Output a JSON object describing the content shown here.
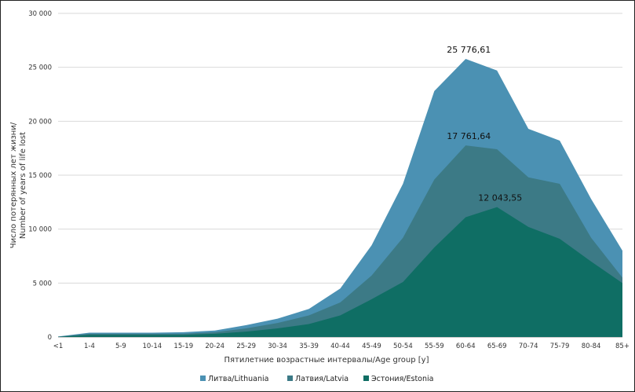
{
  "chart_data": {
    "type": "area",
    "categories": [
      "<1",
      "1-4",
      "5-9",
      "10-14",
      "15-19",
      "20-24",
      "25-29",
      "30-34",
      "35-39",
      "40-44",
      "45-49",
      "50-54",
      "55-59",
      "60-64",
      "65-69",
      "70-74",
      "75-79",
      "80-84",
      "85+"
    ],
    "series": [
      {
        "name": "Литва/Lithuania",
        "color": "#4b91b3",
        "values": [
          50,
          400,
          400,
          400,
          450,
          600,
          1100,
          1700,
          2600,
          4500,
          8500,
          14200,
          22800,
          25776.61,
          24700,
          19300,
          18200,
          12800,
          8000
        ]
      },
      {
        "name": "Латвия/Latvia",
        "color": "#3c7a86",
        "values": [
          30,
          300,
          300,
          300,
          300,
          450,
          800,
          1300,
          2000,
          3200,
          5700,
          9200,
          14600,
          17761.64,
          17400,
          14800,
          14200,
          9200,
          5500
        ]
      },
      {
        "name": "Эстония/Estonia",
        "color": "#0f6e64",
        "values": [
          20,
          200,
          200,
          200,
          200,
          300,
          500,
          800,
          1200,
          2000,
          3500,
          5100,
          8300,
          11100,
          12043.55,
          10200,
          9100,
          7000,
          5000
        ]
      }
    ],
    "data_labels": [
      {
        "series": 0,
        "category": "60-64",
        "text": "25 776,61"
      },
      {
        "series": 1,
        "category": "60-64",
        "text": "17 761,64"
      },
      {
        "series": 2,
        "category": "65-69",
        "text": "12 043,55"
      }
    ],
    "y_ticks": [
      "0",
      "5 000",
      "10 000",
      "15 000",
      "20 000",
      "25 000",
      "30 000"
    ],
    "y_tick_values": [
      0,
      5000,
      10000,
      15000,
      20000,
      25000,
      30000
    ],
    "ylim": [
      0,
      30000
    ],
    "xlabel": "Пятилетние возрастные интервалы/Age group [y]",
    "ylabel_line1": "Число потерянных лет жизни/",
    "ylabel_line2": "Number of years of life lost",
    "grid": true,
    "legend_position": "bottom"
  }
}
